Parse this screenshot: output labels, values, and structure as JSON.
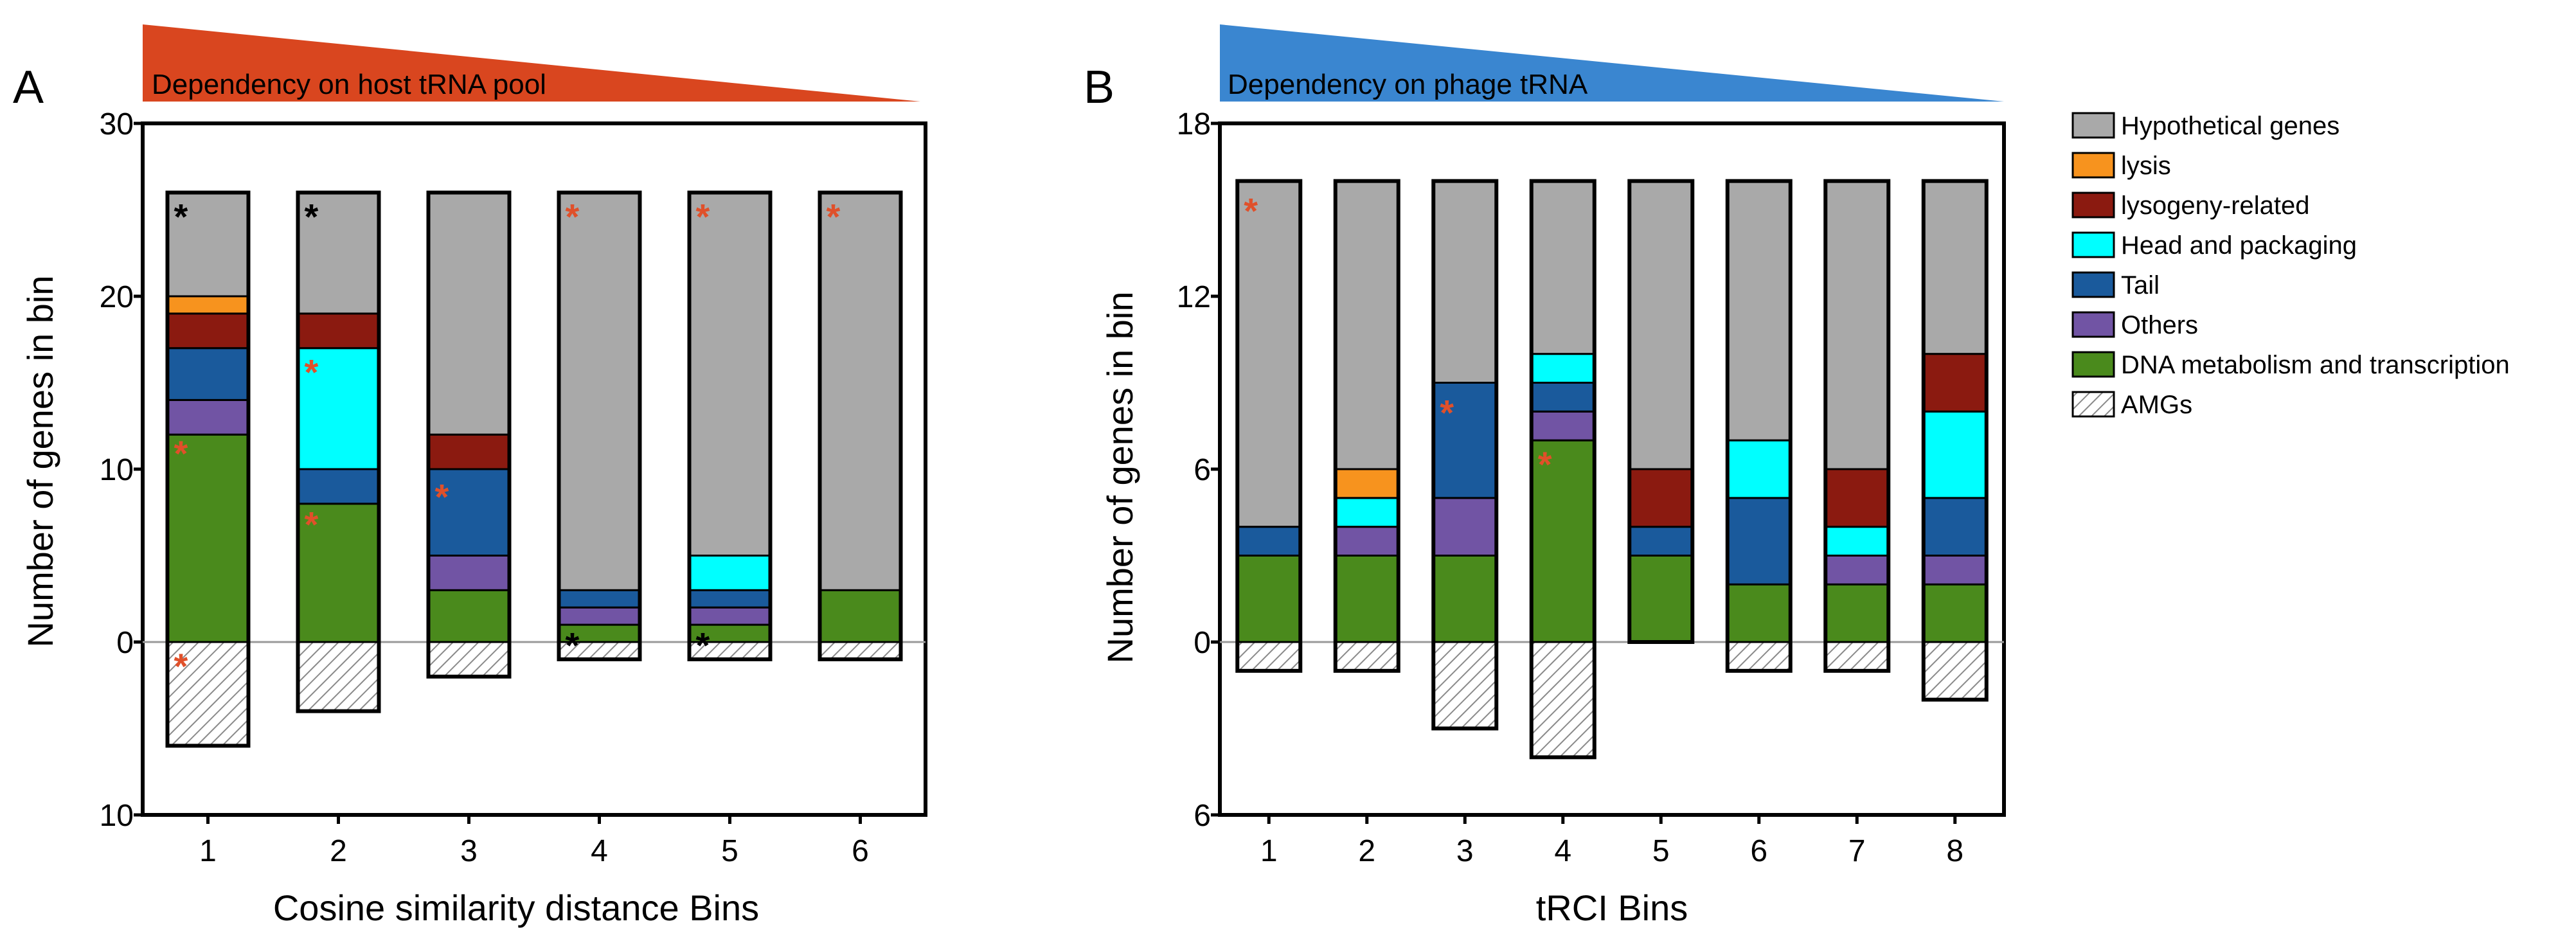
{
  "colors": {
    "Hypothetical genes": "#a9a9a9",
    "lysis": "#f7931e",
    "lysogeny-related": "#8b1a10",
    "Head and packaging": "#00ffff",
    "Tail": "#1a5a9c",
    "Others": "#7154a4",
    "DNA metabolism and transcription": "#4a8a1c",
    "AMGs": "hatch",
    "star_red": "#e0502a",
    "star_black": "#000000",
    "banner_A": "#d9461f",
    "banner_B": "#3a86d0"
  },
  "legend": {
    "items": [
      {
        "label": "Hypothetical genes",
        "key": "Hypothetical genes"
      },
      {
        "label": "lysis",
        "key": "lysis"
      },
      {
        "label": "lysogeny-related",
        "key": "lysogeny-related"
      },
      {
        "label": "Head and packaging",
        "key": "Head and packaging"
      },
      {
        "label": "Tail",
        "key": "Tail"
      },
      {
        "label": "Others",
        "key": "Others"
      },
      {
        "label": "DNA metabolism and transcription",
        "key": "DNA metabolism and transcription"
      },
      {
        "label": "AMGs",
        "key": "AMGs"
      }
    ]
  },
  "chart_data": [
    {
      "type": "bar",
      "subtype": "stacked",
      "panel": "A",
      "banner": "Dependency on host tRNA pool",
      "xlabel": "Cosine similarity distance Bins",
      "ylabel": "Number of genes in bin",
      "ylim": [
        -10,
        30
      ],
      "yticks": [
        -10,
        0,
        10,
        20,
        30
      ],
      "ytick_labels": [
        "10",
        "0",
        "10",
        "20",
        "30"
      ],
      "categories": [
        "1",
        "2",
        "3",
        "4",
        "5",
        "6"
      ],
      "series": [
        {
          "name": "DNA metabolism and transcription",
          "values": [
            12,
            8,
            3,
            1,
            1,
            3
          ]
        },
        {
          "name": "Others",
          "values": [
            2,
            0,
            2,
            1,
            1,
            0
          ]
        },
        {
          "name": "Tail",
          "values": [
            3,
            2,
            5,
            1,
            1,
            0
          ]
        },
        {
          "name": "Head and packaging",
          "values": [
            0,
            7,
            0,
            0,
            2,
            0
          ]
        },
        {
          "name": "lysogeny-related",
          "values": [
            2,
            2,
            2,
            0,
            0,
            0
          ]
        },
        {
          "name": "lysis",
          "values": [
            1,
            0,
            0,
            0,
            0,
            0
          ]
        },
        {
          "name": "Hypothetical genes",
          "values": [
            6,
            7,
            14,
            23,
            21,
            23
          ]
        },
        {
          "name": "AMGs",
          "values": [
            -6,
            -4,
            -2,
            -1,
            -1,
            -1
          ]
        }
      ],
      "annotations": [
        {
          "bar": 0,
          "y": 25,
          "text": "*",
          "color": "black"
        },
        {
          "bar": 0,
          "y": 11.3,
          "text": "*",
          "color": "red"
        },
        {
          "bar": 0,
          "y": -1,
          "text": "*",
          "color": "red"
        },
        {
          "bar": 1,
          "y": 25,
          "text": "*",
          "color": "black"
        },
        {
          "bar": 1,
          "y": 16,
          "text": "*",
          "color": "red"
        },
        {
          "bar": 1,
          "y": 7.2,
          "text": "*",
          "color": "red"
        },
        {
          "bar": 2,
          "y": 8.8,
          "text": "*",
          "color": "red"
        },
        {
          "bar": 3,
          "y": 25,
          "text": "*",
          "color": "red"
        },
        {
          "bar": 3,
          "y": 0.2,
          "text": "*",
          "color": "black"
        },
        {
          "bar": 4,
          "y": 25,
          "text": "*",
          "color": "red"
        },
        {
          "bar": 4,
          "y": 0.2,
          "text": "*",
          "color": "black"
        },
        {
          "bar": 5,
          "y": 25,
          "text": "*",
          "color": "red"
        }
      ]
    },
    {
      "type": "bar",
      "subtype": "stacked",
      "panel": "B",
      "banner": "Dependency on phage tRNA",
      "xlabel": "tRCI Bins",
      "ylabel": "Number of genes in bin",
      "ylim": [
        -6,
        18
      ],
      "yticks": [
        -6,
        0,
        6,
        12,
        18
      ],
      "ytick_labels": [
        "6",
        "0",
        "6",
        "12",
        "18"
      ],
      "categories": [
        "1",
        "2",
        "3",
        "4",
        "5",
        "6",
        "7",
        "8"
      ],
      "series": [
        {
          "name": "DNA metabolism and transcription",
          "values": [
            3,
            3,
            3,
            7,
            3,
            2,
            2,
            2
          ]
        },
        {
          "name": "Others",
          "values": [
            0,
            1,
            2,
            1,
            0,
            0,
            1,
            1
          ]
        },
        {
          "name": "Tail",
          "values": [
            1,
            0,
            4,
            1,
            1,
            3,
            0,
            2
          ]
        },
        {
          "name": "Head and packaging",
          "values": [
            0,
            1,
            0,
            1,
            0,
            2,
            1,
            3
          ]
        },
        {
          "name": "lysis",
          "values": [
            0,
            1,
            0,
            0,
            0,
            0,
            0,
            0
          ]
        },
        {
          "name": "lysogeny-related",
          "values": [
            0,
            0,
            0,
            0,
            2,
            0,
            2,
            2
          ]
        },
        {
          "name": "Hypothetical genes",
          "values": [
            12,
            10,
            7,
            6,
            10,
            9,
            10,
            6
          ]
        },
        {
          "name": "AMGs",
          "values": [
            -1,
            -1,
            -3,
            -4,
            0,
            -1,
            -1,
            -2
          ]
        }
      ],
      "annotations": [
        {
          "bar": 0,
          "y": 15.2,
          "text": "*",
          "color": "red"
        },
        {
          "bar": 2,
          "y": 8.2,
          "text": "*",
          "color": "red"
        },
        {
          "bar": 3,
          "y": 6.4,
          "text": "*",
          "color": "red"
        }
      ]
    }
  ]
}
